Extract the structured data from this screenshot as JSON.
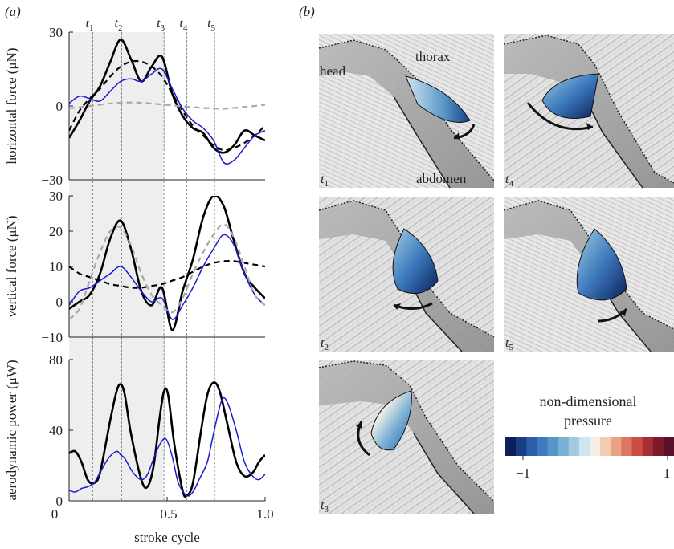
{
  "panel_a_label": "(a)",
  "panel_b_label": "(b)",
  "time_markers": [
    {
      "label": "t",
      "sub": "1",
      "x": 0.165
    },
    {
      "label": "t",
      "sub": "2",
      "x": 0.305
    },
    {
      "label": "t",
      "sub": "3",
      "x": 0.51
    },
    {
      "label": "t",
      "sub": "4",
      "x": 0.62
    },
    {
      "label": "t",
      "sub": "5",
      "x": 0.755
    }
  ],
  "shade_range": [
    0.05,
    0.51
  ],
  "xaxis": {
    "label": "stroke cycle",
    "ticks": [
      "0",
      "0.5",
      "1.0"
    ]
  },
  "chart_data": [
    {
      "type": "line",
      "ylabel": "horizontal force (μN)",
      "ylim": [
        -30,
        30
      ],
      "yticks": [
        30,
        0,
        -30
      ],
      "yticklabels": [
        "30",
        "0",
        "−30"
      ],
      "xlim": [
        0.05,
        1.0
      ],
      "series": [
        {
          "style": "black-solid",
          "x": [
            0.05,
            0.1,
            0.15,
            0.2,
            0.25,
            0.3,
            0.35,
            0.4,
            0.45,
            0.5,
            0.55,
            0.6,
            0.65,
            0.7,
            0.75,
            0.8,
            0.85,
            0.9,
            0.95,
            1.0
          ],
          "y": [
            -13,
            -6,
            2,
            8,
            18,
            27,
            19,
            10,
            16,
            20,
            5,
            -4,
            -9,
            -11,
            -17,
            -19,
            -16,
            -10,
            -12,
            -14
          ]
        },
        {
          "style": "black-dashed",
          "x": [
            0.05,
            0.1,
            0.15,
            0.2,
            0.25,
            0.3,
            0.35,
            0.4,
            0.45,
            0.5,
            0.55,
            0.6,
            0.65,
            0.7,
            0.75,
            0.8,
            0.85,
            0.9,
            0.95,
            1.0
          ],
          "y": [
            -10,
            -2,
            3,
            7,
            12,
            16,
            18,
            18,
            16,
            12,
            5,
            -2,
            -8,
            -12,
            -16,
            -18,
            -17,
            -15,
            -12,
            -8
          ]
        },
        {
          "style": "blue-solid",
          "x": [
            0.05,
            0.1,
            0.15,
            0.2,
            0.25,
            0.3,
            0.35,
            0.4,
            0.45,
            0.5,
            0.55,
            0.6,
            0.65,
            0.7,
            0.75,
            0.8,
            0.85,
            0.9,
            0.95,
            1.0
          ],
          "y": [
            1,
            4,
            3,
            2,
            6,
            10,
            11,
            10,
            13,
            15,
            7,
            -1,
            -6,
            -9,
            -14,
            -23,
            -22,
            -17,
            -12,
            -10
          ]
        },
        {
          "style": "grey-dashed",
          "x": [
            0.05,
            0.1,
            0.15,
            0.2,
            0.25,
            0.3,
            0.35,
            0.4,
            0.45,
            0.5,
            0.55,
            0.6,
            0.65,
            0.7,
            0.75,
            0.8,
            0.85,
            0.9,
            0.95,
            1.0
          ],
          "y": [
            -1,
            -0.5,
            0,
            0.5,
            1,
            1.3,
            1.4,
            1.3,
            1,
            0.6,
            0.2,
            -0.2,
            -0.5,
            -0.8,
            -1,
            -1.1,
            -0.8,
            -0.4,
            0,
            0.5
          ]
        }
      ]
    },
    {
      "type": "line",
      "ylabel": "vertical force (μN)",
      "ylim": [
        -10,
        30
      ],
      "yticks": [
        30,
        20,
        10,
        0,
        -10
      ],
      "yticklabels": [
        "30",
        "20",
        "10",
        "0",
        "−10"
      ],
      "xlim": [
        0.05,
        1.0
      ],
      "series": [
        {
          "style": "black-solid",
          "x": [
            0.05,
            0.1,
            0.15,
            0.2,
            0.25,
            0.3,
            0.35,
            0.4,
            0.45,
            0.5,
            0.55,
            0.6,
            0.65,
            0.7,
            0.75,
            0.8,
            0.85,
            0.9,
            0.95,
            1.0
          ],
          "y": [
            -2,
            0,
            2,
            8,
            18,
            23,
            15,
            3,
            -1,
            4,
            -8,
            3,
            12,
            24,
            30,
            27,
            17,
            8,
            4,
            1
          ]
        },
        {
          "style": "black-dashed",
          "x": [
            0.05,
            0.1,
            0.15,
            0.2,
            0.25,
            0.3,
            0.35,
            0.4,
            0.45,
            0.5,
            0.55,
            0.6,
            0.65,
            0.7,
            0.75,
            0.8,
            0.85,
            0.9,
            0.95,
            1.0
          ],
          "y": [
            10,
            8,
            7,
            6,
            5,
            4.5,
            4,
            4,
            4.5,
            5,
            6,
            7,
            8.5,
            10,
            11,
            11.5,
            11.5,
            11,
            10.5,
            10
          ]
        },
        {
          "style": "blue-solid",
          "x": [
            0.05,
            0.1,
            0.15,
            0.2,
            0.25,
            0.3,
            0.35,
            0.4,
            0.45,
            0.5,
            0.55,
            0.6,
            0.65,
            0.7,
            0.75,
            0.8,
            0.85,
            0.9,
            0.95,
            1.0
          ],
          "y": [
            -1,
            3,
            4,
            6,
            8,
            10,
            7,
            3,
            0,
            1,
            -5,
            -1,
            4,
            10,
            15,
            19,
            16,
            8,
            2,
            -1
          ]
        },
        {
          "style": "grey-dashed",
          "x": [
            0.05,
            0.1,
            0.15,
            0.2,
            0.25,
            0.3,
            0.35,
            0.4,
            0.45,
            0.5,
            0.55,
            0.6,
            0.65,
            0.7,
            0.75,
            0.8,
            0.85,
            0.9,
            0.95,
            1.0
          ],
          "y": [
            -5,
            -2,
            6,
            14,
            20,
            21,
            16,
            8,
            2,
            -1,
            -3,
            1,
            8,
            14,
            19,
            22,
            18,
            10,
            2,
            -1
          ]
        }
      ]
    },
    {
      "type": "line",
      "ylabel": "aerodynamic power (μW)",
      "ylim": [
        0,
        80
      ],
      "yticks": [
        80,
        40,
        0
      ],
      "yticklabels": [
        "80",
        "40",
        "0"
      ],
      "xlim": [
        0.05,
        1.0
      ],
      "series": [
        {
          "style": "black-solid",
          "x": [
            0.05,
            0.08,
            0.11,
            0.14,
            0.17,
            0.2,
            0.25,
            0.28,
            0.3,
            0.32,
            0.35,
            0.4,
            0.43,
            0.46,
            0.49,
            0.51,
            0.53,
            0.56,
            0.6,
            0.62,
            0.65,
            0.69,
            0.72,
            0.75,
            0.78,
            0.82,
            0.86,
            0.9,
            0.94,
            0.97,
            1.0
          ],
          "y": [
            27,
            28,
            22,
            12,
            10,
            16,
            46,
            62,
            66,
            60,
            38,
            12,
            8,
            20,
            48,
            62,
            60,
            32,
            6,
            3,
            10,
            40,
            60,
            67,
            62,
            42,
            22,
            14,
            16,
            22,
            26
          ]
        },
        {
          "style": "blue-solid",
          "x": [
            0.05,
            0.08,
            0.11,
            0.14,
            0.17,
            0.2,
            0.24,
            0.28,
            0.3,
            0.32,
            0.36,
            0.4,
            0.43,
            0.46,
            0.49,
            0.52,
            0.55,
            0.58,
            0.62,
            0.65,
            0.68,
            0.72,
            0.75,
            0.79,
            0.82,
            0.86,
            0.9,
            0.94,
            0.97,
            1.0
          ],
          "y": [
            6,
            5,
            7,
            8,
            10,
            16,
            24,
            28,
            26,
            24,
            16,
            12,
            15,
            24,
            32,
            35,
            25,
            10,
            3,
            5,
            12,
            22,
            38,
            57,
            55,
            40,
            22,
            14,
            12,
            15
          ]
        }
      ]
    }
  ],
  "panel_b": {
    "labels": {
      "head": "head",
      "thorax": "thorax",
      "abdomen": "abdomen"
    },
    "frames": [
      {
        "t": "t",
        "sub": "1"
      },
      {
        "t": "t",
        "sub": "4"
      },
      {
        "t": "t",
        "sub": "2"
      },
      {
        "t": "t",
        "sub": "5"
      },
      {
        "t": "t",
        "sub": "3"
      }
    ],
    "legend": {
      "title_line1": "non-dimensional",
      "title_line2": "pressure",
      "min_label": "−1",
      "max_label": "1",
      "colors": [
        "#0b1f5c",
        "#183f86",
        "#2b5ea8",
        "#3d7bbd",
        "#5896c9",
        "#79b1d6",
        "#a2cbe2",
        "#d0e6ef",
        "#f4efe6",
        "#f2cdb4",
        "#eba184",
        "#de7561",
        "#cc4d44",
        "#a82e35",
        "#7d1a2a",
        "#58102a"
      ]
    }
  }
}
